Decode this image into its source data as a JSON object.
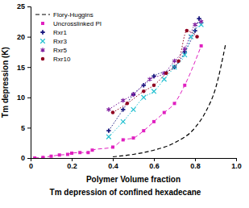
{
  "chart_data": {
    "type": "scatter",
    "title": "Tm depression of confined hexadecane",
    "x_label": "Polymer Volume fraction",
    "y_label": "Tm depression (K)",
    "xlim": [
      0,
      1
    ],
    "ylim": [
      0,
      25
    ],
    "xticks": [
      0,
      0.2,
      0.4,
      0.6,
      0.8,
      {
        "value": 1,
        "label": "1.0"
      }
    ],
    "yticks": [
      0,
      5,
      10,
      15,
      20,
      25
    ],
    "grid": false,
    "legend": "upper left",
    "series": [
      {
        "name": "Flory-Huggins",
        "type": "line",
        "color": "#000000",
        "line_style": "dashed",
        "x": [
          0.4,
          0.5,
          0.6,
          0.7,
          0.8,
          0.85,
          0.9,
          0.95
        ],
        "values": [
          0.2,
          0.6,
          1.3,
          2.5,
          5,
          7.5,
          11.5,
          19
        ]
      },
      {
        "name": "Uncrosslinked PI",
        "type": "scatter",
        "color": "#e020c0",
        "marker": "square",
        "line_style": "dashed",
        "x": [
          0.02,
          0.06,
          0.1,
          0.14,
          0.18,
          0.2,
          0.24,
          0.28,
          0.3,
          0.4,
          0.45,
          0.5,
          0.55,
          0.6,
          0.65,
          0.7,
          0.75,
          0.83
        ],
        "values": [
          0,
          0.1,
          0.3,
          0.5,
          0.6,
          0.8,
          0.9,
          0.9,
          1.3,
          1.8,
          3,
          3.3,
          4.5,
          6,
          7.5,
          9,
          12,
          18.5
        ]
      },
      {
        "name": "Rxr1",
        "type": "scatter",
        "color": "#1a1a80",
        "marker": "cross",
        "line_style": "dotted",
        "x": [
          0.38,
          0.45,
          0.5,
          0.55,
          0.6,
          0.7,
          0.75,
          0.8,
          0.82
        ],
        "values": [
          4.5,
          8,
          10.5,
          12,
          13.5,
          15,
          17.5,
          21,
          23
        ]
      },
      {
        "name": "Rxr3",
        "type": "scatter",
        "color": "#20c0d0",
        "marker": "x",
        "line_style": "dotted",
        "x": [
          0.38,
          0.45,
          0.5,
          0.55,
          0.6,
          0.65,
          0.7,
          0.75,
          0.78,
          0.83
        ],
        "values": [
          3.5,
          6,
          8,
          10,
          11,
          13,
          15,
          17,
          20,
          22
        ]
      },
      {
        "name": "Rxr5",
        "type": "scatter",
        "color": "#8020a0",
        "marker": "asterisk",
        "line_style": "dotted",
        "x": [
          0.38,
          0.45,
          0.5,
          0.58,
          0.65,
          0.7,
          0.75,
          0.8,
          0.83
        ],
        "values": [
          8,
          9.5,
          10.5,
          13,
          14,
          16,
          18,
          22,
          22.5
        ]
      },
      {
        "name": "Rxr10",
        "type": "scatter",
        "color": "#900020",
        "marker": "circle",
        "line_style": "dotted",
        "x": [
          0.4,
          0.47,
          0.55,
          0.6,
          0.66,
          0.72,
          0.76,
          0.81
        ],
        "values": [
          7.5,
          9,
          11,
          12,
          14,
          16,
          21,
          20
        ]
      }
    ]
  }
}
